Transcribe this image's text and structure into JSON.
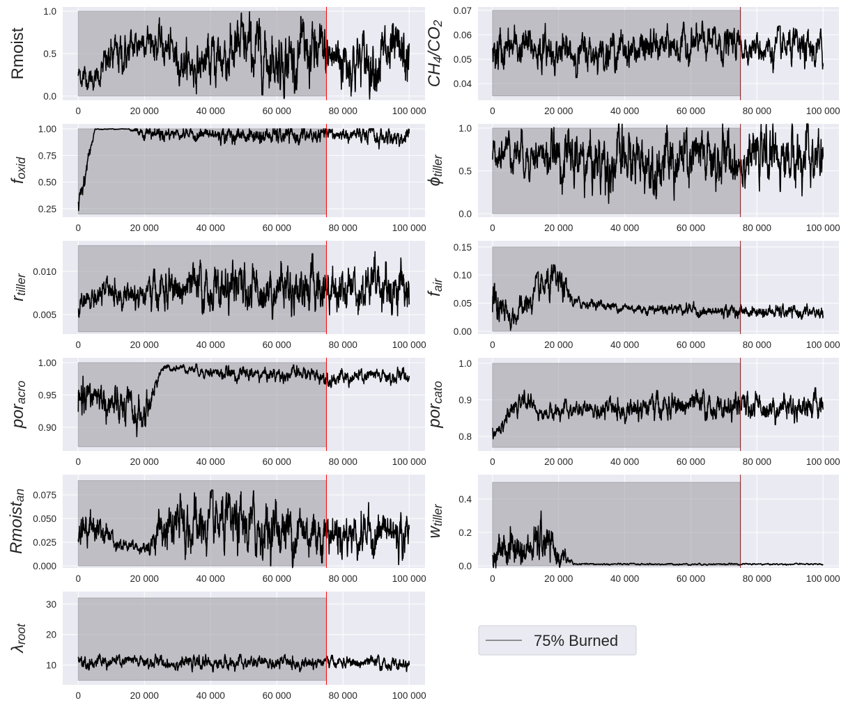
{
  "colors": {
    "background": "#EAEAF2",
    "grid": "#FFFFFF",
    "trace": "#000000",
    "burn_line": "#FF0000",
    "burn_shade": "#9a99a0"
  },
  "legend": {
    "label": "75% Burned",
    "placement": "right column, bottom row"
  },
  "chart_data": [
    {
      "type": "line",
      "panel": "left-1",
      "ylabel": [
        {
          "t": "Rmoist"
        }
      ],
      "italic": false,
      "xlim": [
        -4700,
        104800
      ],
      "ylim": [
        -0.05,
        1.05
      ],
      "xticks": [
        0,
        20000,
        40000,
        60000,
        80000,
        100000
      ],
      "xtick_labels": [
        "0",
        "20 000",
        "40 000",
        "60 000",
        "80 000",
        "100 000"
      ],
      "yticks": [
        0,
        0.5,
        1.0
      ],
      "ytick_labels": [
        "0.0",
        "0.5",
        "1.0"
      ],
      "burn_x": 75000,
      "shade_y": [
        0,
        1.0
      ],
      "mean": [
        0.25,
        0.2,
        0.45,
        0.5,
        0.7,
        0.6,
        0.45,
        0.35,
        0.4,
        0.5,
        0.55,
        0.5,
        0.45,
        0.45,
        0.5,
        0.45,
        0.45,
        0.4,
        0.45,
        0.45,
        0.4
      ],
      "spread": [
        0.12,
        0.1,
        0.2,
        0.2,
        0.15,
        0.2,
        0.2,
        0.2,
        0.25,
        0.3,
        0.3,
        0.3,
        0.3,
        0.3,
        0.3,
        0.3,
        0.3,
        0.28,
        0.3,
        0.3,
        0.28
      ]
    },
    {
      "type": "line",
      "panel": "right-1",
      "ylabel": [
        {
          "t": "CH"
        },
        {
          "t": "4",
          "sub": true
        },
        {
          "t": "/CO"
        },
        {
          "t": "2",
          "sub": true
        }
      ],
      "italic": true,
      "xlim": [
        -4400,
        104800
      ],
      "ylim": [
        0.0332,
        0.0714
      ],
      "xticks": [
        0,
        20000,
        40000,
        60000,
        80000,
        100000
      ],
      "xtick_labels": [
        "0",
        "20 000",
        "40 000",
        "60 000",
        "80 000",
        "100 000"
      ],
      "yticks": [
        0.04,
        0.05,
        0.06,
        0.07
      ],
      "ytick_labels": [
        "0.04",
        "0.05",
        "0.06",
        "0.07"
      ],
      "burn_x": 75000,
      "shade_y": [
        0.035,
        0.07
      ],
      "mean": [
        0.052,
        0.054,
        0.055,
        0.054,
        0.053,
        0.052,
        0.053,
        0.054,
        0.054,
        0.054,
        0.055,
        0.055,
        0.056,
        0.056,
        0.056,
        0.056,
        0.055,
        0.054,
        0.054,
        0.053,
        0.053
      ],
      "spread": [
        0.008,
        0.007,
        0.007,
        0.007,
        0.006,
        0.006,
        0.006,
        0.006,
        0.006,
        0.006,
        0.006,
        0.006,
        0.006,
        0.006,
        0.006,
        0.005,
        0.005,
        0.006,
        0.006,
        0.006,
        0.006
      ]
    },
    {
      "type": "line",
      "panel": "left-2",
      "ylabel": [
        {
          "t": "f"
        },
        {
          "t": "oxid",
          "sub": true
        }
      ],
      "italic": true,
      "xlim": [
        -4700,
        104800
      ],
      "ylim": [
        0.171,
        1.046
      ],
      "xticks": [
        0,
        20000,
        40000,
        60000,
        80000,
        100000
      ],
      "xtick_labels": [
        "0",
        "20 000",
        "40 000",
        "60 000",
        "80 000",
        "100 000"
      ],
      "yticks": [
        0.25,
        0.5,
        0.75,
        1.0
      ],
      "ytick_labels": [
        "0.25",
        "0.50",
        "0.75",
        "1.00"
      ],
      "burn_x": 75000,
      "shade_y": [
        0.2,
        1.0
      ],
      "mean": [
        0.3,
        0.995,
        0.998,
        0.998,
        0.97,
        0.96,
        0.96,
        0.95,
        0.94,
        0.94,
        0.94,
        0.93,
        0.93,
        0.93,
        0.93,
        0.94,
        0.95,
        0.93,
        0.92,
        0.92,
        0.92
      ],
      "spread": [
        0.12,
        0.005,
        0.003,
        0.003,
        0.05,
        0.06,
        0.04,
        0.05,
        0.06,
        0.06,
        0.06,
        0.07,
        0.07,
        0.07,
        0.07,
        0.06,
        0.05,
        0.07,
        0.08,
        0.08,
        0.08
      ]
    },
    {
      "type": "line",
      "panel": "right-2",
      "ylabel": [
        {
          "t": "ϕ"
        },
        {
          "t": "tiller",
          "sub": true
        }
      ],
      "italic": true,
      "xlim": [
        -4400,
        104800
      ],
      "ylim": [
        -0.041,
        1.049
      ],
      "xticks": [
        0,
        20000,
        40000,
        60000,
        80000,
        100000
      ],
      "xtick_labels": [
        "0",
        "20 000",
        "40 000",
        "60 000",
        "80 000",
        "100 000"
      ],
      "yticks": [
        0,
        0.5,
        1.0
      ],
      "ytick_labels": [
        "0.0",
        "0.5",
        "1.0"
      ],
      "burn_x": 75000,
      "shade_y": [
        0,
        1.0
      ],
      "mean": [
        0.72,
        0.78,
        0.7,
        0.68,
        0.65,
        0.62,
        0.62,
        0.6,
        0.6,
        0.62,
        0.62,
        0.6,
        0.6,
        0.62,
        0.62,
        0.66,
        0.66,
        0.68,
        0.66,
        0.64,
        0.6
      ],
      "spread": [
        0.15,
        0.18,
        0.2,
        0.2,
        0.25,
        0.3,
        0.3,
        0.3,
        0.3,
        0.28,
        0.28,
        0.3,
        0.3,
        0.3,
        0.28,
        0.25,
        0.25,
        0.25,
        0.27,
        0.3,
        0.3
      ]
    },
    {
      "type": "line",
      "panel": "left-3",
      "ylabel": [
        {
          "t": "r"
        },
        {
          "t": "tiller",
          "sub": true
        }
      ],
      "italic": true,
      "xlim": [
        -4700,
        104800
      ],
      "ylim": [
        0.00274,
        0.01355
      ],
      "xticks": [
        0,
        20000,
        40000,
        60000,
        80000,
        100000
      ],
      "xtick_labels": [
        "0",
        "20 000",
        "40 000",
        "60 000",
        "80 000",
        "100 000"
      ],
      "yticks": [
        0.005,
        0.01
      ],
      "ytick_labels": [
        "0.005",
        "0.010"
      ],
      "burn_x": 75000,
      "shade_y": [
        0.003,
        0.013
      ],
      "mean": [
        0.0055,
        0.0072,
        0.0075,
        0.0075,
        0.0072,
        0.0078,
        0.0078,
        0.0078,
        0.0078,
        0.008,
        0.008,
        0.008,
        0.0082,
        0.0082,
        0.0082,
        0.0083,
        0.0083,
        0.0083,
        0.0083,
        0.0083,
        0.008
      ],
      "spread": [
        0.0012,
        0.0012,
        0.0013,
        0.0013,
        0.0015,
        0.002,
        0.002,
        0.0022,
        0.0022,
        0.0022,
        0.0022,
        0.0023,
        0.0023,
        0.0023,
        0.0024,
        0.0024,
        0.0024,
        0.0024,
        0.0025,
        0.0025,
        0.0025
      ]
    },
    {
      "type": "line",
      "panel": "right-3",
      "ylabel": [
        {
          "t": "f"
        },
        {
          "t": "air",
          "sub": true
        }
      ],
      "italic": true,
      "xlim": [
        -4400,
        104800
      ],
      "ylim": [
        -0.005,
        0.161
      ],
      "xticks": [
        0,
        20000,
        40000,
        60000,
        80000,
        100000
      ],
      "xtick_labels": [
        "0",
        "20 000",
        "40 000",
        "60 000",
        "80 000",
        "100 000"
      ],
      "yticks": [
        0,
        0.05,
        0.1,
        0.15
      ],
      "ytick_labels": [
        "0.00",
        "0.05",
        "0.10",
        "0.15"
      ],
      "burn_x": 75000,
      "shade_y": [
        0,
        0.15
      ],
      "mean": [
        0.05,
        0.02,
        0.045,
        0.075,
        0.085,
        0.05,
        0.05,
        0.045,
        0.042,
        0.04,
        0.04,
        0.042,
        0.04,
        0.032,
        0.037,
        0.036,
        0.034,
        0.034,
        0.033,
        0.033,
        0.033
      ],
      "spread": [
        0.04,
        0.015,
        0.02,
        0.025,
        0.025,
        0.008,
        0.007,
        0.007,
        0.007,
        0.007,
        0.008,
        0.008,
        0.009,
        0.009,
        0.009,
        0.009,
        0.009,
        0.01,
        0.01,
        0.01,
        0.01
      ]
    },
    {
      "type": "line",
      "panel": "left-4",
      "ylabel": [
        {
          "t": "por"
        },
        {
          "t": "acro",
          "sub": true
        }
      ],
      "italic": true,
      "xlim": [
        -4700,
        104800
      ],
      "ylim": [
        0.8634,
        1.0075
      ],
      "xticks": [
        0,
        20000,
        40000,
        60000,
        80000,
        100000
      ],
      "xtick_labels": [
        "0",
        "20 000",
        "40 000",
        "60 000",
        "80 000",
        "100 000"
      ],
      "yticks": [
        0.9,
        0.95,
        1.0
      ],
      "ytick_labels": [
        "0.90",
        "0.95",
        "1.00"
      ],
      "burn_x": 75000,
      "shade_y": [
        0.87,
        1.0
      ],
      "mean": [
        0.92,
        0.955,
        0.93,
        0.925,
        0.915,
        0.99,
        0.993,
        0.99,
        0.985,
        0.982,
        0.982,
        0.982,
        0.982,
        0.982,
        0.982,
        0.978,
        0.976,
        0.977,
        0.978,
        0.977,
        0.98
      ],
      "spread": [
        0.035,
        0.02,
        0.025,
        0.025,
        0.025,
        0.005,
        0.004,
        0.006,
        0.008,
        0.009,
        0.009,
        0.009,
        0.009,
        0.009,
        0.009,
        0.01,
        0.01,
        0.01,
        0.01,
        0.01,
        0.01
      ]
    },
    {
      "type": "line",
      "panel": "right-4",
      "ylabel": [
        {
          "t": "por"
        },
        {
          "t": "cato",
          "sub": true
        }
      ],
      "italic": true,
      "xlim": [
        -4400,
        104800
      ],
      "ylim": [
        0.76,
        1.0152
      ],
      "xticks": [
        0,
        20000,
        40000,
        60000,
        80000,
        100000
      ],
      "xtick_labels": [
        "0",
        "20 000",
        "40 000",
        "60 000",
        "80 000",
        "100 000"
      ],
      "yticks": [
        0.8,
        0.9,
        1.0
      ],
      "ytick_labels": [
        "0.8",
        "0.9",
        "1.0"
      ],
      "burn_x": 75000,
      "shade_y": [
        0.77,
        1.0
      ],
      "mean": [
        0.81,
        0.86,
        0.9,
        0.86,
        0.87,
        0.87,
        0.87,
        0.87,
        0.875,
        0.88,
        0.88,
        0.88,
        0.885,
        0.88,
        0.875,
        0.88,
        0.885,
        0.88,
        0.88,
        0.885,
        0.885
      ],
      "spread": [
        0.02,
        0.02,
        0.02,
        0.015,
        0.02,
        0.02,
        0.02,
        0.025,
        0.025,
        0.03,
        0.03,
        0.03,
        0.03,
        0.03,
        0.025,
        0.03,
        0.03,
        0.03,
        0.03,
        0.03,
        0.03
      ]
    },
    {
      "type": "line",
      "panel": "left-5",
      "ylabel": [
        {
          "t": "Rmoist"
        },
        {
          "t": "an",
          "sub": true
        }
      ],
      "italic": true,
      "xlim": [
        -4700,
        104800
      ],
      "ylim": [
        -0.0022,
        0.0963
      ],
      "xticks": [
        0,
        20000,
        40000,
        60000,
        80000,
        100000
      ],
      "xtick_labels": [
        "0",
        "20 000",
        "40 000",
        "60 000",
        "80 000",
        "100 000"
      ],
      "yticks": [
        0,
        0.025,
        0.05,
        0.075
      ],
      "ytick_labels": [
        "0.000",
        "0.025",
        "0.050",
        "0.075"
      ],
      "burn_x": 75000,
      "shade_y": [
        0,
        0.09
      ],
      "mean": [
        0.04,
        0.045,
        0.03,
        0.02,
        0.018,
        0.038,
        0.04,
        0.04,
        0.04,
        0.04,
        0.04,
        0.04,
        0.04,
        0.038,
        0.036,
        0.036,
        0.035,
        0.035,
        0.035,
        0.035,
        0.03
      ],
      "spread": [
        0.02,
        0.015,
        0.01,
        0.005,
        0.005,
        0.02,
        0.025,
        0.025,
        0.025,
        0.025,
        0.025,
        0.025,
        0.025,
        0.025,
        0.022,
        0.02,
        0.02,
        0.02,
        0.02,
        0.02,
        0.02
      ]
    },
    {
      "type": "line",
      "panel": "right-5",
      "ylabel": [
        {
          "t": "w"
        },
        {
          "t": "tiller",
          "sub": true
        }
      ],
      "italic": true,
      "xlim": [
        -4400,
        104800
      ],
      "ylim": [
        -0.0125,
        0.546
      ],
      "xticks": [
        0,
        20000,
        40000,
        60000,
        80000,
        100000
      ],
      "xtick_labels": [
        "0",
        "20 000",
        "40 000",
        "60 000",
        "80 000",
        "100 000"
      ],
      "yticks": [
        0,
        0.2,
        0.4
      ],
      "ytick_labels": [
        "0.0",
        "0.2",
        "0.4"
      ],
      "burn_x": 75000,
      "shade_y": [
        0,
        0.5
      ],
      "mean": [
        0.07,
        0.12,
        0.08,
        0.15,
        0.06,
        0.01,
        0.01,
        0.01,
        0.01,
        0.01,
        0.01,
        0.01,
        0.01,
        0.01,
        0.01,
        0.01,
        0.01,
        0.01,
        0.01,
        0.01,
        0.01
      ],
      "spread": [
        0.05,
        0.12,
        0.07,
        0.12,
        0.06,
        0.004,
        0.004,
        0.004,
        0.004,
        0.004,
        0.004,
        0.004,
        0.004,
        0.004,
        0.004,
        0.004,
        0.004,
        0.004,
        0.004,
        0.004,
        0.004
      ]
    },
    {
      "type": "line",
      "panel": "left-6",
      "ylabel": [
        {
          "t": "λ"
        },
        {
          "t": "root",
          "sub": true
        }
      ],
      "italic": true,
      "xlim": [
        -4700,
        104800
      ],
      "ylim": [
        3.5,
        34.1
      ],
      "xticks": [
        0,
        20000,
        40000,
        60000,
        80000,
        100000
      ],
      "xtick_labels": [
        "0",
        "20 000",
        "40 000",
        "60 000",
        "80 000",
        "100 000"
      ],
      "yticks": [
        10,
        20,
        30
      ],
      "ytick_labels": [
        "10",
        "20",
        "30"
      ],
      "burn_x": 75000,
      "shade_y": [
        5,
        32
      ],
      "mean": [
        12,
        11,
        11,
        11,
        11,
        10.8,
        10.8,
        10.6,
        10.6,
        10.6,
        10.6,
        10.6,
        10.6,
        10.6,
        10.8,
        11,
        10.8,
        10.5,
        10.5,
        10.2,
        10
      ],
      "spread": [
        2,
        1.8,
        1.8,
        1.8,
        1.8,
        1.8,
        1.8,
        1.8,
        1.8,
        1.8,
        1.8,
        1.8,
        1.8,
        1.8,
        1.8,
        1.5,
        1.5,
        1.8,
        1.8,
        1.8,
        1.5
      ]
    }
  ]
}
